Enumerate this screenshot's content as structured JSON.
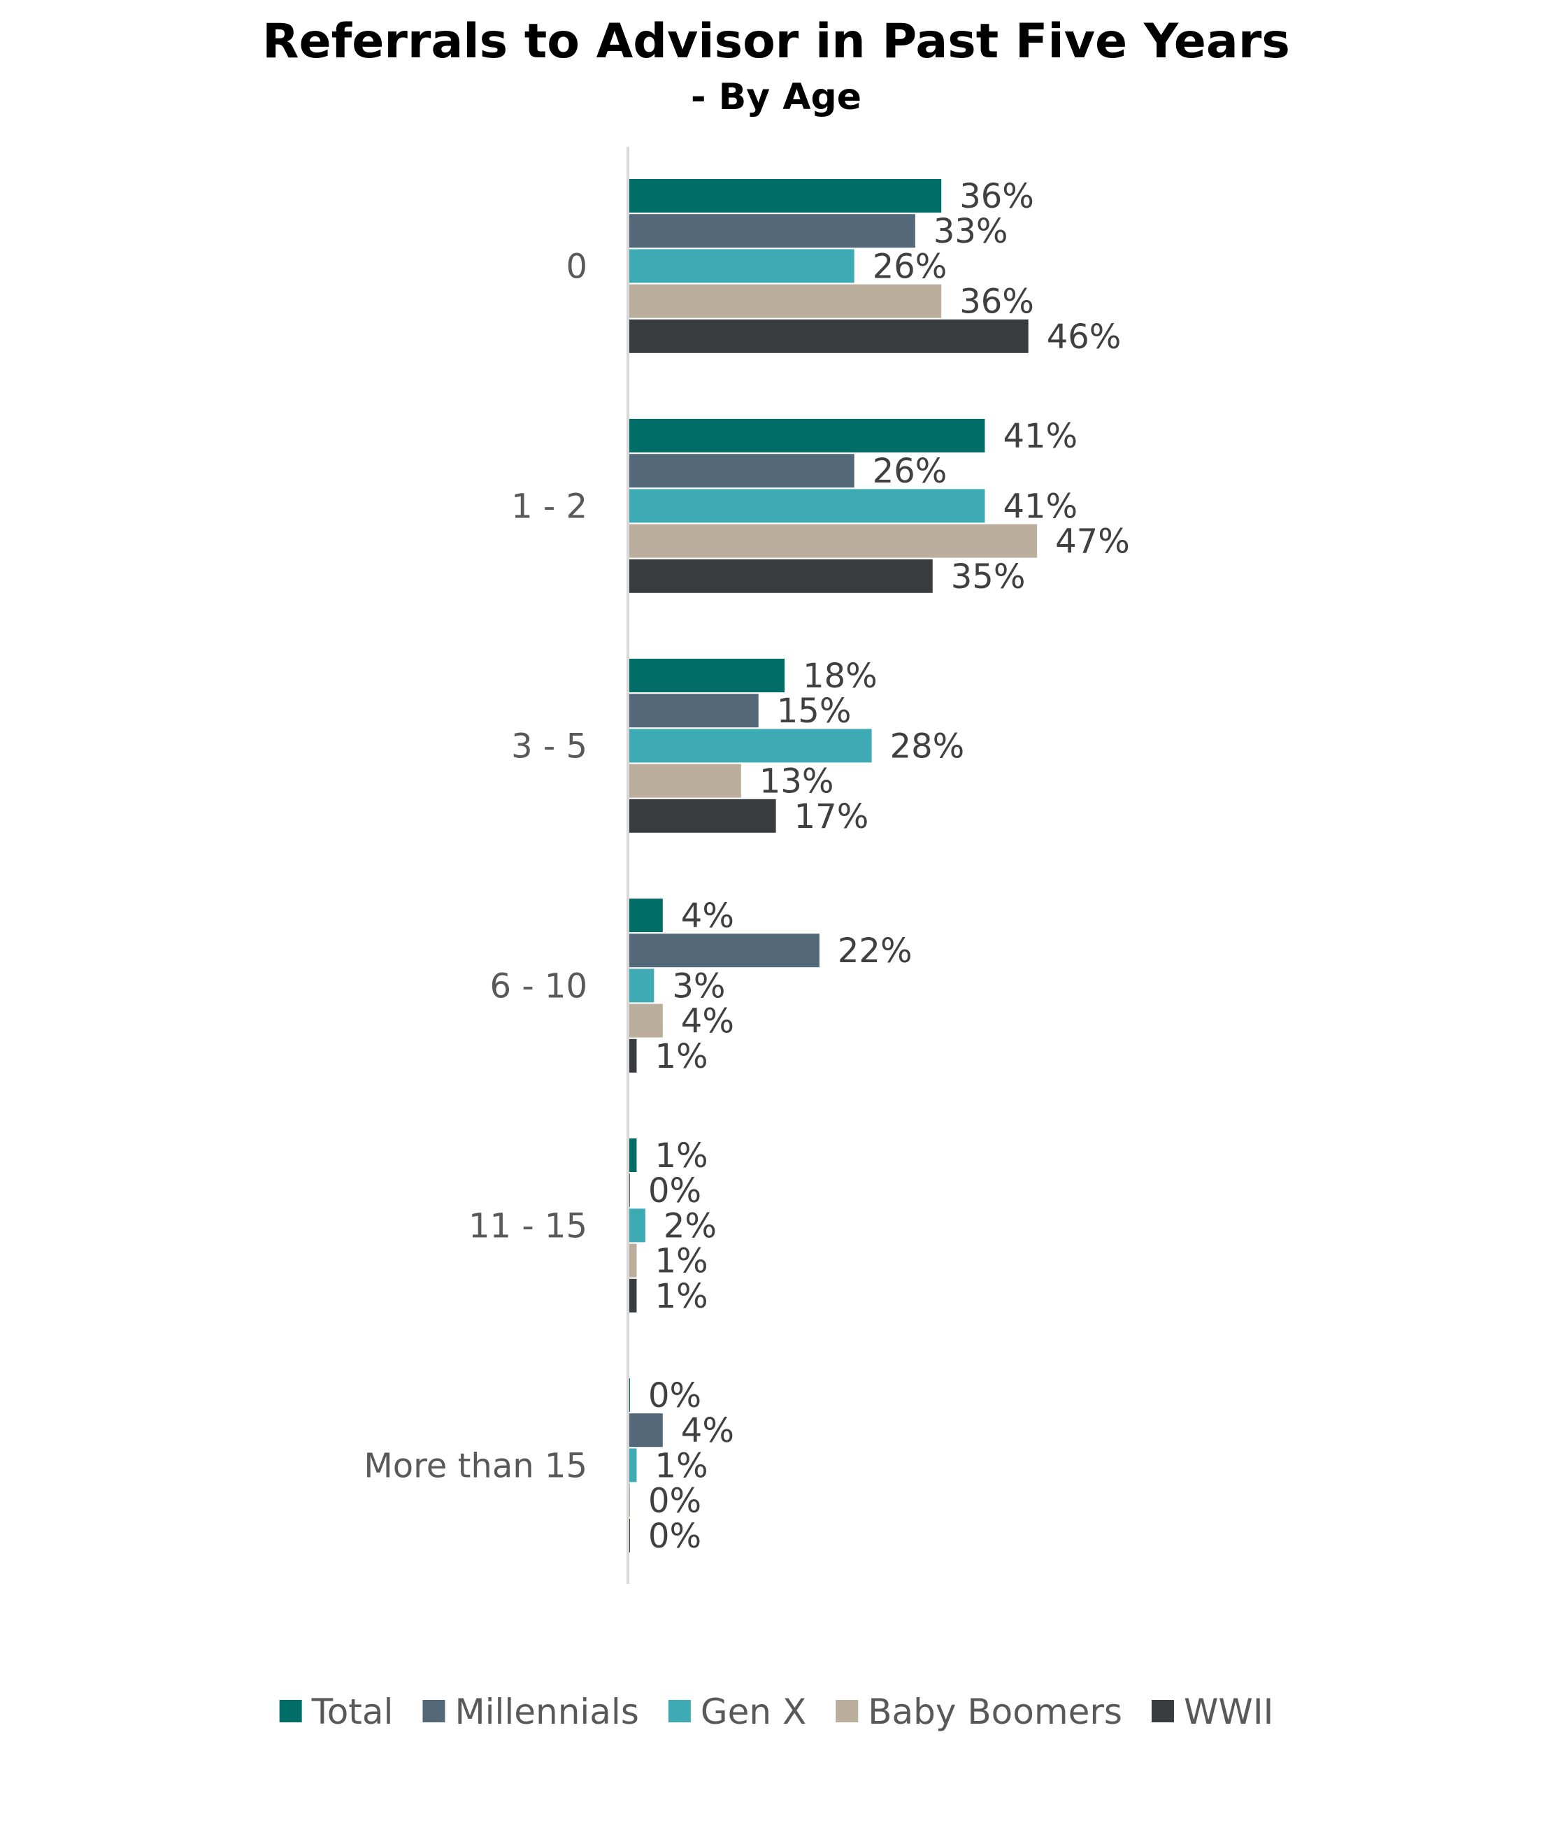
{
  "chart_data": {
    "type": "bar",
    "orientation": "horizontal",
    "title": "Referrals to Advisor in Past Five Years",
    "subtitle": "- By Age",
    "categories": [
      "0",
      "1 - 2",
      "3 - 5",
      "6 - 10",
      "11 - 15",
      "More than 15"
    ],
    "series": [
      {
        "name": "Total",
        "color": "#006e66",
        "values": [
          36,
          41,
          18,
          4,
          1,
          0
        ],
        "labels": [
          "36%",
          "41%",
          "18%",
          "4%",
          "1%",
          "0%"
        ]
      },
      {
        "name": "Millennials",
        "color": "#536878",
        "values": [
          33,
          26,
          15,
          22,
          0,
          4
        ],
        "labels": [
          "33%",
          "26%",
          "15%",
          "22%",
          "0%",
          "4%"
        ]
      },
      {
        "name": "Gen X",
        "color": "#3eaab4",
        "values": [
          26,
          41,
          28,
          3,
          2,
          1
        ],
        "labels": [
          "26%",
          "41%",
          "28%",
          "3%",
          "2%",
          "1%"
        ]
      },
      {
        "name": "Baby Boomers",
        "color": "#bbae9c",
        "values": [
          36,
          47,
          13,
          4,
          1,
          0
        ],
        "labels": [
          "36%",
          "47%",
          "13%",
          "4%",
          "1%",
          "0%"
        ]
      },
      {
        "name": "WWII",
        "color": "#383c3e",
        "values": [
          46,
          35,
          17,
          1,
          1,
          0
        ],
        "labels": [
          "46%",
          "35%",
          "17%",
          "1%",
          "1%",
          "0%"
        ]
      }
    ],
    "xlim": [
      0,
      100
    ],
    "grid": false,
    "legend": "bottom",
    "axis_color": "#d9d9d9"
  }
}
